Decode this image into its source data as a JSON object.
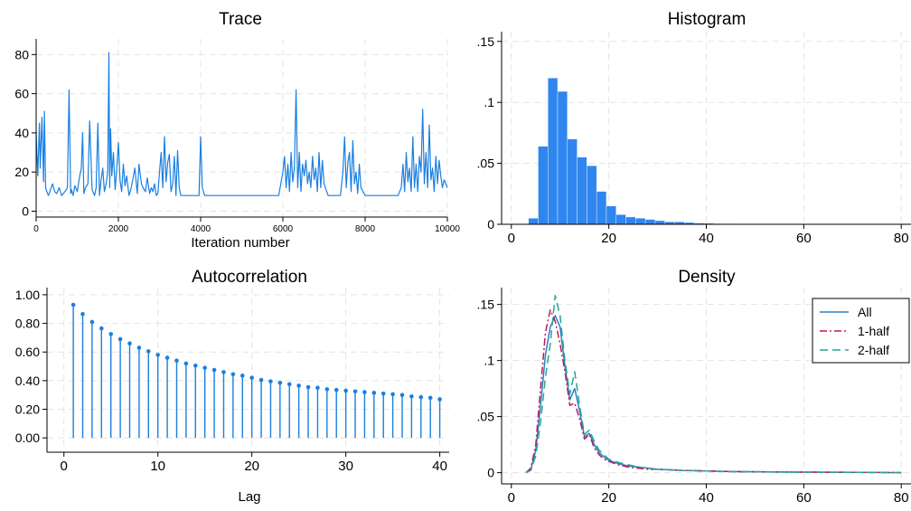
{
  "chart_data": [
    {
      "type": "line",
      "title": "Trace",
      "xlabel": "Iteration number",
      "ylabel": "",
      "xlim": [
        0,
        10000
      ],
      "ylim": [
        -3,
        88
      ],
      "x_ticks": [
        "0",
        "2000",
        "4000",
        "6000",
        "8000",
        "10000"
      ],
      "y_ticks": [
        "0",
        "20",
        "40",
        "60",
        "80"
      ],
      "grid": true,
      "color": "#1a7fe0",
      "series": [
        {
          "x": [
            0,
            40,
            80,
            100,
            140,
            180,
            200,
            230,
            260,
            300,
            350,
            400,
            450,
            500,
            560,
            620,
            700,
            760,
            800,
            840,
            860,
            900,
            940,
            1000,
            1060,
            1100,
            1130,
            1160,
            1200,
            1260,
            1300,
            1360,
            1420,
            1460,
            1500,
            1540,
            1580,
            1620,
            1660,
            1700,
            1740,
            1770,
            1790,
            1810,
            1840,
            1880,
            1920,
            1960,
            2000,
            2040,
            2080,
            2120,
            2160,
            2200,
            2260,
            2300,
            2340,
            2400,
            2460,
            2500,
            2560,
            2600,
            2660,
            2700,
            2760,
            2800,
            2840,
            2880,
            2920,
            2960,
            3000,
            3040,
            3080,
            3120,
            3160,
            3200,
            3240,
            3280,
            3320,
            3360,
            3400,
            3440,
            3480,
            3520,
            3600,
            3700,
            3800,
            3900,
            3960,
            4000,
            4040,
            4100,
            4200,
            4300,
            4400,
            4500,
            4600,
            4700,
            4800,
            4900,
            5000,
            5100,
            5200,
            5300,
            5400,
            5500,
            5600,
            5700,
            5800,
            5900,
            6000,
            6040,
            6080,
            6120,
            6160,
            6200,
            6240,
            6280,
            6320,
            6360,
            6400,
            6440,
            6480,
            6520,
            6560,
            6600,
            6640,
            6680,
            6720,
            6760,
            6800,
            6840,
            6880,
            6920,
            6960,
            7000,
            7100,
            7200,
            7300,
            7400,
            7460,
            7500,
            7540,
            7580,
            7620,
            7660,
            7700,
            7740,
            7780,
            7820,
            7860,
            7900,
            8000,
            8100,
            8200,
            8300,
            8400,
            8500,
            8600,
            8700,
            8800,
            8880,
            8920,
            8960,
            9000,
            9040,
            9080,
            9120,
            9160,
            9200,
            9240,
            9280,
            9320,
            9360,
            9400,
            9440,
            9480,
            9520,
            9560,
            9600,
            9640,
            9680,
            9720,
            9760,
            9800,
            9840,
            9880,
            9920,
            9960,
            10000
          ],
          "values": [
            40,
            18,
            45,
            22,
            48,
            15,
            51,
            12,
            10,
            8,
            11,
            14,
            10,
            9,
            12,
            8,
            10,
            12,
            62,
            9,
            11,
            8,
            13,
            10,
            18,
            22,
            40,
            9,
            12,
            14,
            46,
            11,
            8,
            12,
            45,
            8,
            16,
            22,
            10,
            14,
            20,
            81,
            12,
            42,
            18,
            30,
            11,
            22,
            35,
            16,
            10,
            24,
            13,
            18,
            8,
            11,
            15,
            22,
            9,
            24,
            14,
            12,
            10,
            17,
            9,
            12,
            10,
            14,
            8,
            9,
            20,
            30,
            12,
            38,
            15,
            25,
            29,
            10,
            14,
            28,
            8,
            31,
            12,
            8,
            8,
            8,
            8,
            8,
            8,
            38,
            12,
            8,
            8,
            8,
            8,
            8,
            8,
            8,
            8,
            8,
            8,
            8,
            8,
            8,
            8,
            8,
            8,
            8,
            8,
            8,
            20,
            28,
            12,
            24,
            10,
            30,
            15,
            22,
            62,
            12,
            30,
            10,
            24,
            18,
            26,
            14,
            20,
            12,
            28,
            16,
            22,
            10,
            30,
            12,
            26,
            14,
            8,
            8,
            8,
            8,
            20,
            38,
            12,
            25,
            30,
            10,
            36,
            14,
            20,
            9,
            24,
            12,
            8,
            8,
            8,
            8,
            8,
            8,
            8,
            8,
            8,
            12,
            24,
            10,
            30,
            15,
            22,
            10,
            38,
            12,
            24,
            10,
            28,
            20,
            52,
            14,
            30,
            12,
            44,
            16,
            22,
            10,
            28,
            14,
            26,
            18,
            12,
            16,
            14,
            12
          ]
        }
      ]
    },
    {
      "type": "bar",
      "title": "Histogram",
      "xlabel": "",
      "ylabel": "",
      "xlim": [
        -2,
        82
      ],
      "ylim": [
        0,
        0.158
      ],
      "x_ticks": [
        "0",
        "20",
        "40",
        "60",
        "80"
      ],
      "y_ticks": [
        "0",
        ".05",
        ".1",
        ".15"
      ],
      "grid": true,
      "color": "#2f86ee",
      "bin_edges": [
        3.5,
        5.5,
        7.5,
        9.5,
        11.5,
        13.5,
        15.5,
        17.5,
        19.5,
        21.5,
        23.5,
        25.5,
        27.5,
        29.5,
        31.5,
        33.5,
        35.5,
        37.5,
        39.5,
        41.5,
        43.5,
        45.5,
        47.5,
        49.5,
        51.5,
        53.5,
        55.5,
        57.5,
        59.5,
        61.5,
        63.5,
        65.5,
        67.5,
        69.5,
        71.5,
        73.5,
        75.5,
        77.5,
        79.5,
        81.5
      ],
      "values": [
        0.005,
        0.064,
        0.12,
        0.109,
        0.07,
        0.055,
        0.048,
        0.027,
        0.015,
        0.008,
        0.006,
        0.005,
        0.004,
        0.003,
        0.002,
        0.002,
        0.0015,
        0.001,
        0.0008,
        0.0006,
        0.0005,
        0.0004,
        0.0004,
        0.0003,
        0.0003,
        0.0003,
        0.0002,
        0.0002,
        0.0002,
        0.0002,
        0.0002,
        0.0001,
        0.0001,
        0.0001,
        0.0001,
        0.0001,
        0.0001,
        0.0001,
        0.0005
      ]
    },
    {
      "type": "scatter",
      "title": "Autocorrelation",
      "xlabel": "Lag",
      "ylabel": "",
      "xlim": [
        -1.8,
        41
      ],
      "ylim": [
        -0.1,
        1.05
      ],
      "x_ticks": [
        "0",
        "10",
        "20",
        "30",
        "40"
      ],
      "y_ticks": [
        "0.00",
        "0.20",
        "0.40",
        "0.60",
        "0.80",
        "1.00"
      ],
      "grid": true,
      "color": "#1a7fe0",
      "x": [
        1,
        2,
        3,
        4,
        5,
        6,
        7,
        8,
        9,
        10,
        11,
        12,
        13,
        14,
        15,
        16,
        17,
        18,
        19,
        20,
        21,
        22,
        23,
        24,
        25,
        26,
        27,
        28,
        29,
        30,
        31,
        32,
        33,
        34,
        35,
        36,
        37,
        38,
        39,
        40
      ],
      "values": [
        0.93,
        0.865,
        0.81,
        0.765,
        0.725,
        0.69,
        0.66,
        0.63,
        0.605,
        0.58,
        0.56,
        0.54,
        0.52,
        0.505,
        0.49,
        0.475,
        0.46,
        0.445,
        0.435,
        0.42,
        0.405,
        0.395,
        0.385,
        0.375,
        0.365,
        0.355,
        0.35,
        0.34,
        0.335,
        0.33,
        0.325,
        0.32,
        0.315,
        0.31,
        0.305,
        0.3,
        0.29,
        0.285,
        0.28,
        0.27
      ]
    },
    {
      "type": "line",
      "title": "Density",
      "xlabel": "",
      "ylabel": "",
      "xlim": [
        -2,
        82
      ],
      "ylim": [
        -0.01,
        0.165
      ],
      "x_ticks": [
        "0",
        "20",
        "40",
        "60",
        "80"
      ],
      "y_ticks": [
        "0",
        ".05",
        ".1",
        ".15"
      ],
      "grid": true,
      "legend": "top-right",
      "series": [
        {
          "name": "All",
          "color": "#2f7fc1",
          "dash": "",
          "x": [
            3,
            4,
            5,
            6,
            7,
            8,
            9,
            10,
            11,
            12,
            13,
            14,
            15,
            16,
            17,
            18,
            19,
            20,
            22,
            24,
            26,
            28,
            30,
            35,
            40,
            45,
            50,
            55,
            60,
            65,
            70,
            75,
            80
          ],
          "values": [
            0,
            0.003,
            0.02,
            0.06,
            0.105,
            0.13,
            0.14,
            0.13,
            0.095,
            0.065,
            0.075,
            0.055,
            0.032,
            0.035,
            0.025,
            0.018,
            0.014,
            0.011,
            0.008,
            0.006,
            0.005,
            0.004,
            0.003,
            0.002,
            0.0015,
            0.001,
            0.0008,
            0.0006,
            0.0005,
            0.0004,
            0.0003,
            0.0002,
            0
          ]
        },
        {
          "name": "1-half",
          "color": "#c2185b",
          "dash": "8,3,2,3",
          "x": [
            3,
            4,
            5,
            6,
            7,
            8,
            9,
            10,
            11,
            12,
            13,
            14,
            15,
            16,
            17,
            18,
            19,
            20,
            22,
            24,
            26,
            28,
            30,
            35,
            40,
            45,
            50,
            55,
            60,
            65,
            70,
            75,
            80
          ],
          "values": [
            0,
            0.004,
            0.025,
            0.075,
            0.125,
            0.145,
            0.135,
            0.115,
            0.09,
            0.06,
            0.062,
            0.048,
            0.03,
            0.034,
            0.022,
            0.016,
            0.012,
            0.01,
            0.007,
            0.005,
            0.004,
            0.003,
            0.003,
            0.002,
            0.0015,
            0.001,
            0.0008,
            0.0006,
            0.0005,
            0.0004,
            0.0003,
            0.0002,
            0
          ]
        },
        {
          "name": "2-half",
          "color": "#26a69a",
          "dash": "9,5",
          "x": [
            3,
            4,
            5,
            6,
            7,
            8,
            9,
            10,
            11,
            12,
            13,
            14,
            15,
            16,
            17,
            18,
            19,
            20,
            22,
            24,
            26,
            28,
            30,
            35,
            40,
            45,
            50,
            55,
            60,
            65,
            70,
            75,
            80
          ],
          "values": [
            0,
            0.002,
            0.015,
            0.045,
            0.085,
            0.115,
            0.158,
            0.14,
            0.1,
            0.07,
            0.09,
            0.06,
            0.034,
            0.038,
            0.028,
            0.02,
            0.016,
            0.012,
            0.009,
            0.007,
            0.005,
            0.004,
            0.003,
            0.002,
            0.0015,
            0.001,
            0.0008,
            0.0006,
            0.0005,
            0.0004,
            0.0003,
            0.0002,
            0
          ]
        }
      ]
    }
  ]
}
